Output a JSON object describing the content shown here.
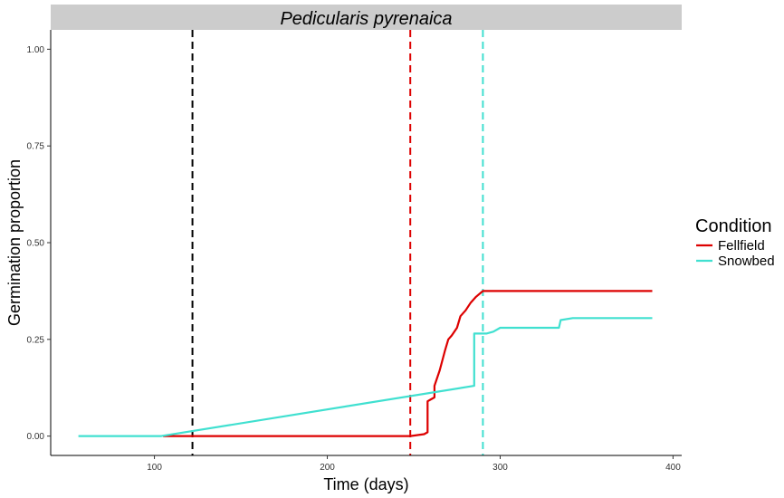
{
  "chart_data": {
    "type": "line",
    "title": "Pedicularis pyrenaica",
    "xlabel": "Time (days)",
    "ylabel": "Germination proportion",
    "xlim": [
      40,
      405
    ],
    "ylim": [
      -0.05,
      1.05
    ],
    "x_ticks": [
      100,
      200,
      300,
      400
    ],
    "x_tick_labels": [
      "100",
      "200",
      "300",
      "400"
    ],
    "y_ticks": [
      0,
      0.25,
      0.5,
      0.75,
      1
    ],
    "y_tick_labels": [
      "0.00",
      "0.25",
      "0.50",
      "0.75",
      "1.00"
    ],
    "grid": false,
    "legend_title": "Condition",
    "legend_position": "right",
    "series": [
      {
        "name": "Fellfield",
        "color": "#dd0000",
        "points": [
          [
            105,
            0
          ],
          [
            248,
            0
          ],
          [
            256,
            0.005
          ],
          [
            258,
            0.01
          ],
          [
            258,
            0.09
          ],
          [
            260,
            0.095
          ],
          [
            262,
            0.1
          ],
          [
            262,
            0.13
          ],
          [
            265,
            0.17
          ],
          [
            268,
            0.22
          ],
          [
            270,
            0.25
          ],
          [
            272,
            0.26
          ],
          [
            275,
            0.28
          ],
          [
            277,
            0.31
          ],
          [
            280,
            0.325
          ],
          [
            283,
            0.345
          ],
          [
            286,
            0.36
          ],
          [
            290,
            0.375
          ],
          [
            388,
            0.375
          ]
        ]
      },
      {
        "name": "Snowbed",
        "color": "#40e0d0",
        "points": [
          [
            56,
            0
          ],
          [
            104,
            0
          ],
          [
            285,
            0.13
          ],
          [
            285,
            0.265
          ],
          [
            292,
            0.265
          ],
          [
            296,
            0.27
          ],
          [
            300,
            0.28
          ],
          [
            334,
            0.28
          ],
          [
            335,
            0.3
          ],
          [
            342,
            0.305
          ],
          [
            388,
            0.305
          ]
        ]
      }
    ],
    "vlines": [
      {
        "x": 122,
        "color": "#000000"
      },
      {
        "x": 248,
        "color": "#dd0000"
      },
      {
        "x": 290,
        "color": "#40e0d0"
      }
    ]
  }
}
